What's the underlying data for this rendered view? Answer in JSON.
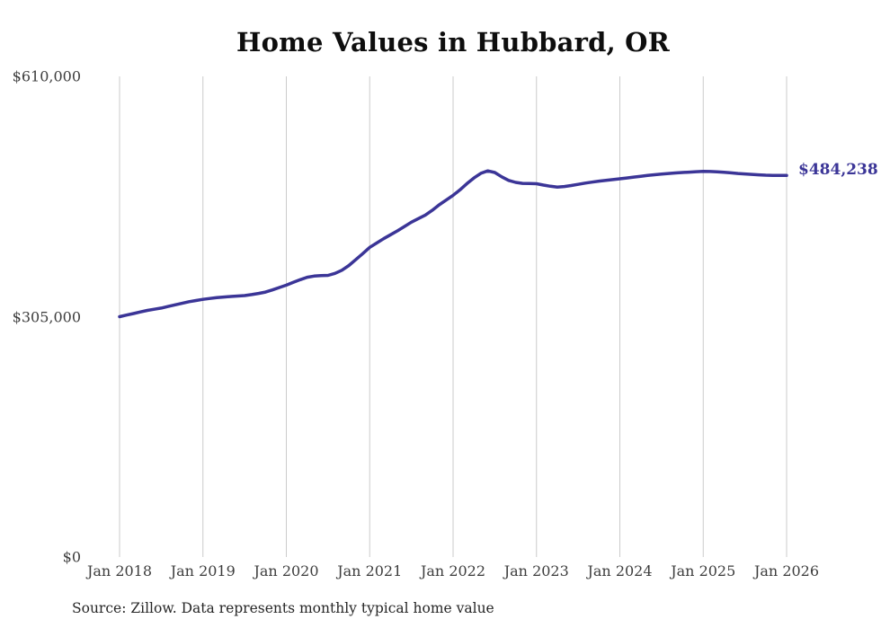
{
  "chart": {
    "title": "Home Values in Hubbard, OR",
    "source": "Source: Zillow. Data represents monthly typical home value",
    "end_label": "$484,238",
    "colors": {
      "line": "#3b3597",
      "grid": "#cbcbcb",
      "axis_text": "#3d3d3d",
      "title_text": "#0e0e0e",
      "source_text": "#262626"
    }
  },
  "chart_data": {
    "type": "line",
    "title": "Home Values in Hubbard, OR",
    "xlabel": "",
    "ylabel": "",
    "x_start": "2018-01",
    "x_end": "2026-01",
    "frequency": "monthly",
    "x_tick_labels": [
      "Jan 2018",
      "Jan 2019",
      "Jan 2020",
      "Jan 2021",
      "Jan 2022",
      "Jan 2023",
      "Jan 2024",
      "Jan 2025",
      "Jan 2026"
    ],
    "y_tick_labels": [
      "$0",
      "$305,000",
      "$610,000"
    ],
    "y_ticks": [
      0,
      305000,
      610000
    ],
    "ylim": [
      0,
      610000
    ],
    "grid": "vertical-only",
    "legend_position": "none",
    "end_value": 484238,
    "end_value_label": "$484,238",
    "series": [
      {
        "name": "Typical home value",
        "values": [
          305000,
          307000,
          309000,
          311000,
          313000,
          314500,
          316000,
          318000,
          320000,
          322000,
          324000,
          325500,
          327000,
          328200,
          329200,
          330000,
          330600,
          331200,
          331800,
          333000,
          334500,
          336200,
          339000,
          342000,
          345000,
          348500,
          352000,
          355000,
          356500,
          357200,
          357500,
          360000,
          364000,
          370000,
          377500,
          385000,
          393000,
          398500,
          404000,
          409000,
          414000,
          419500,
          425000,
          429500,
          434000,
          440000,
          447000,
          453000,
          459000,
          466000,
          474000,
          481000,
          487000,
          490000,
          488000,
          482500,
          478000,
          475500,
          474200,
          474000,
          473800,
          472000,
          470500,
          469500,
          470200,
          471500,
          473000,
          474500,
          475800,
          477000,
          478000,
          479000,
          480000,
          481000,
          482200,
          483200,
          484200,
          485200,
          486000,
          486800,
          487400,
          488000,
          488500,
          489000,
          489400,
          489200,
          488800,
          488200,
          487500,
          486800,
          486200,
          485600,
          485000,
          484600,
          484400,
          484300,
          484238
        ]
      }
    ]
  }
}
